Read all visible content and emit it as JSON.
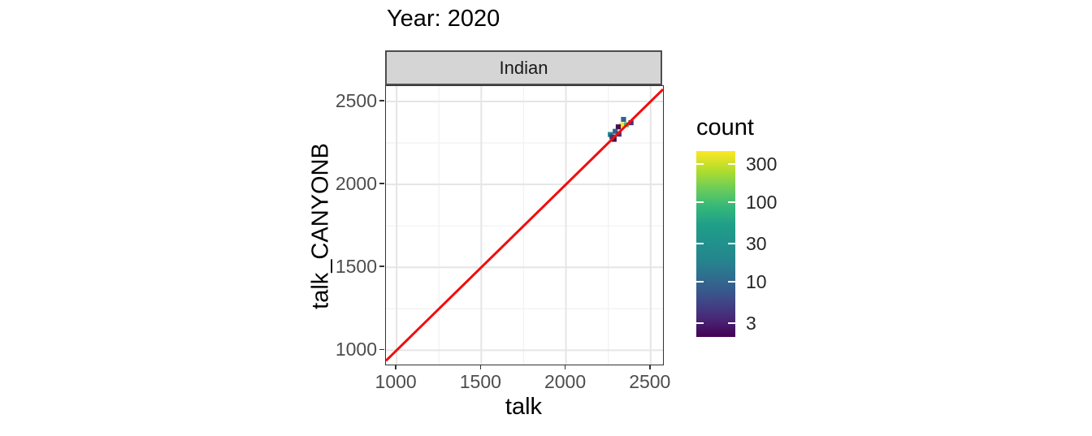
{
  "title": "Year: 2020",
  "facet": {
    "label": "Indian"
  },
  "axes": {
    "x": {
      "title": "talk",
      "ticks": [
        1000,
        1500,
        2000,
        2500
      ],
      "minor_ticks": [
        1250,
        1750,
        2250
      ],
      "range": [
        937,
        2573
      ]
    },
    "y": {
      "title": "talk_CANYONB",
      "ticks": [
        1000,
        1500,
        2000,
        2500
      ],
      "minor_ticks": [
        1250,
        1750,
        2250
      ],
      "range": [
        914,
        2593
      ]
    }
  },
  "legend": {
    "title": "count",
    "ticks": [
      300,
      100,
      30,
      10,
      3
    ],
    "scale": {
      "type": "log10",
      "min": 2,
      "max": 437
    },
    "palette": [
      "#440154",
      "#482878",
      "#3E4A89",
      "#31688E",
      "#26828E",
      "#21918C",
      "#1F9E89",
      "#35B779",
      "#6DCD59",
      "#B4DE2C",
      "#FDE725"
    ]
  },
  "colors": {
    "identity_line": "#F20D0D",
    "strip_bg": "#D5D5D5",
    "strip_border": "#4D4D4D",
    "panel_border": "#333333",
    "grid_major": "#E5E5E5",
    "grid_minor": "#F2F2F2",
    "tick_label": "#4D4D4D"
  },
  "chart_data": {
    "type": "heatmap",
    "subtype": "geom_bin2d",
    "title": "Year: 2020",
    "facet": "Indian",
    "xlabel": "talk",
    "ylabel": "talk_CANYONB",
    "xlim": [
      937,
      2573
    ],
    "ylim": [
      914,
      2593
    ],
    "x_breaks": [
      1000,
      1500,
      2000,
      2500
    ],
    "y_breaks": [
      1000,
      1500,
      2000,
      2500
    ],
    "grid": true,
    "bin_width": 30,
    "legend_title": "count",
    "legend_position": "right",
    "count_ticks": [
      3,
      10,
      30,
      100,
      300
    ],
    "identity_line": {
      "slope": 1,
      "intercept": 0,
      "color": "#F20D0D",
      "width": 3
    },
    "tiles": [
      {
        "x": 2340,
        "y": 2392,
        "count": 12,
        "color": "#33638D"
      },
      {
        "x": 2384,
        "y": 2372,
        "count": 3,
        "color": "#46327E"
      },
      {
        "x": 2357,
        "y": 2360,
        "count": 110,
        "color": "#4AC16D"
      },
      {
        "x": 2328,
        "y": 2358,
        "count": 350,
        "color": "#FDE725"
      },
      {
        "x": 2309,
        "y": 2347,
        "count": 2,
        "color": "#450D54"
      },
      {
        "x": 2291,
        "y": 2320,
        "count": 12,
        "color": "#33638D"
      },
      {
        "x": 2313,
        "y": 2303,
        "count": 3,
        "color": "#46327E"
      },
      {
        "x": 2262,
        "y": 2301,
        "count": 35,
        "color": "#25858E"
      },
      {
        "x": 2272,
        "y": 2287,
        "count": 8,
        "color": "#3B3F78"
      },
      {
        "x": 2284,
        "y": 2272,
        "count": 2,
        "color": "#450D54"
      }
    ]
  }
}
